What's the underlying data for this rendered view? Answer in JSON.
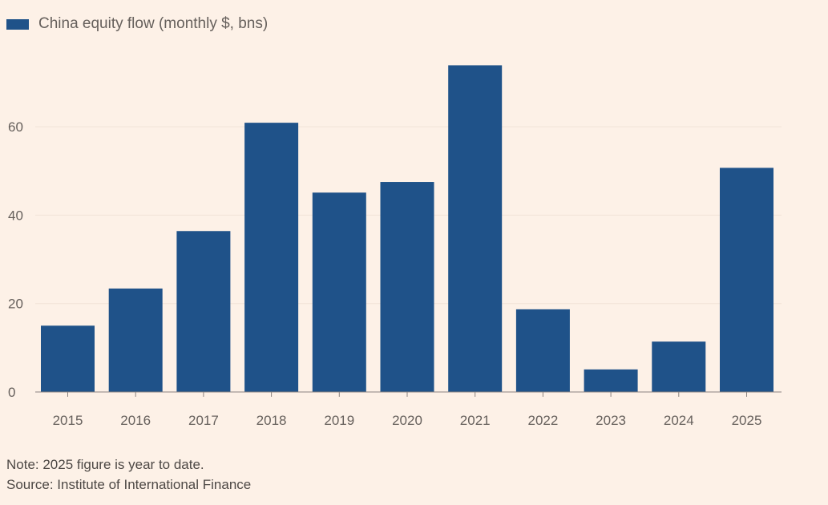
{
  "chart_data": {
    "type": "bar",
    "title": "",
    "legend": [
      {
        "label": "China equity flow (monthly $, bns)",
        "color": "#1f5289"
      }
    ],
    "legend_placement": "top-left",
    "categories": [
      "2015",
      "2016",
      "2017",
      "2018",
      "2019",
      "2020",
      "2021",
      "2022",
      "2023",
      "2024",
      "2025"
    ],
    "series": [
      {
        "name": "China equity flow (monthly $, bns)",
        "values": [
          15,
          23.4,
          36.4,
          60.9,
          45.1,
          47.5,
          73.9,
          18.7,
          5.1,
          11.4,
          50.7
        ]
      }
    ],
    "xlabel": "",
    "ylabel": "",
    "ylim": [
      0,
      75
    ],
    "yticks": [
      0,
      20,
      40,
      60
    ],
    "grid": true
  },
  "notes": {
    "note": "Note: 2025 figure is year to date.",
    "source": "Source: Institute of International Finance"
  },
  "colors": {
    "bar": "#1f5289",
    "background": "#fdf1e7",
    "grid": "#f1e3d7"
  }
}
